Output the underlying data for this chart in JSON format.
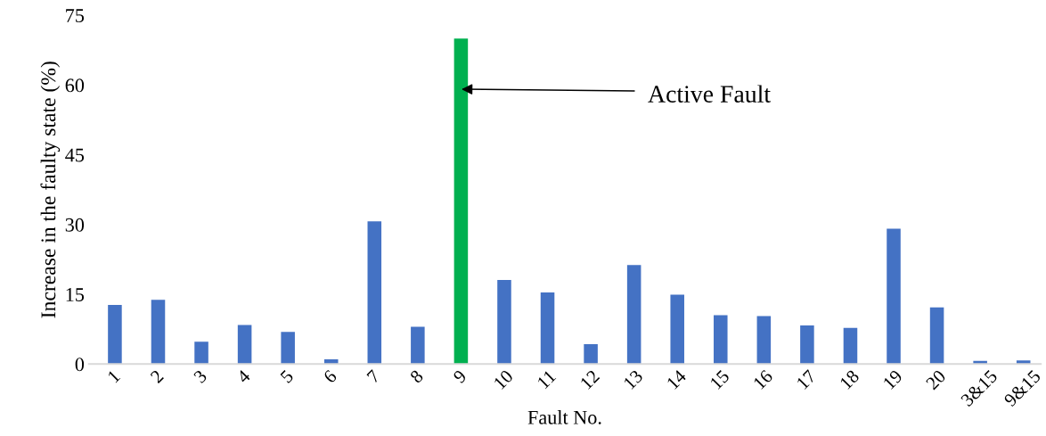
{
  "chart_data": {
    "type": "bar",
    "xlabel": "Fault No.",
    "ylabel": "Increase in the faulty state (%)",
    "categories": [
      "1",
      "2",
      "3",
      "4",
      "5",
      "6",
      "7",
      "8",
      "9",
      "10",
      "11",
      "12",
      "13",
      "14",
      "15",
      "16",
      "17",
      "18",
      "19",
      "20",
      "3&15",
      "9&15"
    ],
    "values": [
      12.7,
      13.8,
      4.8,
      8.4,
      6.9,
      1.0,
      30.7,
      8.0,
      70,
      18.1,
      15.4,
      4.3,
      21.3,
      14.9,
      10.5,
      10.3,
      8.3,
      7.8,
      29.1,
      12.2,
      0.7,
      0.8
    ],
    "colors": [
      "#4472c4",
      "#4472c4",
      "#4472c4",
      "#4472c4",
      "#4472c4",
      "#4472c4",
      "#4472c4",
      "#4472c4",
      "#00b050",
      "#4472c4",
      "#4472c4",
      "#4472c4",
      "#4472c4",
      "#4472c4",
      "#4472c4",
      "#4472c4",
      "#4472c4",
      "#4472c4",
      "#4472c4",
      "#4472c4",
      "#4472c4",
      "#4472c4"
    ],
    "ylim": [
      0,
      75
    ],
    "yticks": [
      0,
      15,
      30,
      45,
      60,
      75
    ],
    "grid": false,
    "legend": false,
    "annotations": [
      "Active Fault"
    ]
  }
}
